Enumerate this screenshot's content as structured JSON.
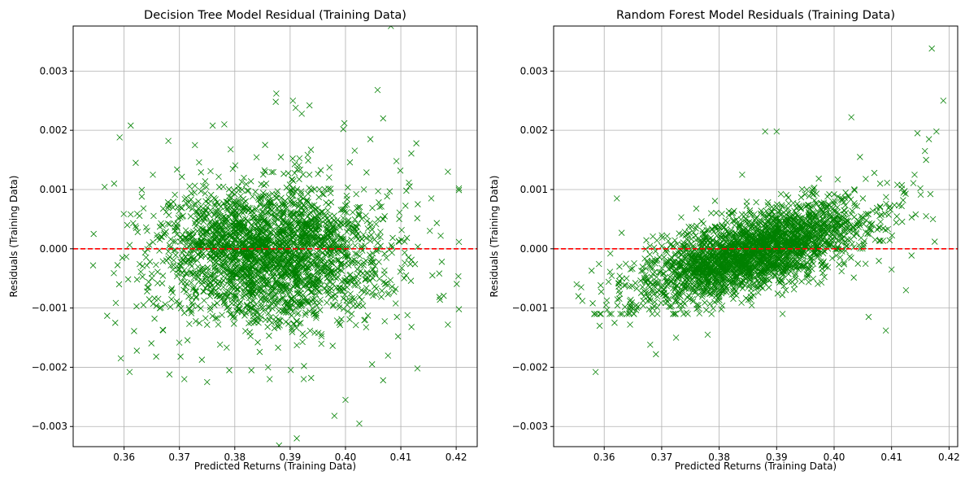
{
  "colors": {
    "marker": "#008000",
    "zero_line": "#ff0000",
    "grid": "#b0b0b0",
    "axes": "#000000"
  },
  "chart_data": [
    {
      "type": "scatter",
      "title": "Decision Tree Model Residual (Training Data)",
      "xlabel": "Predicted Returns (Training Data)",
      "ylabel": "Residuals (Training Data)",
      "xlim": [
        0.3508,
        0.4238
      ],
      "ylim": [
        -0.00334,
        0.00376
      ],
      "xticks": [
        0.36,
        0.37,
        0.38,
        0.39,
        0.4,
        0.41,
        0.42
      ],
      "xtick_labels": [
        "0.36",
        "0.37",
        "0.38",
        "0.39",
        "0.40",
        "0.41",
        "0.42"
      ],
      "yticks": [
        -0.003,
        -0.002,
        -0.001,
        0.0,
        0.001,
        0.002,
        0.003
      ],
      "ytick_labels": [
        "−0.003",
        "−0.002",
        "−0.001",
        "0.000",
        "0.001",
        "0.002",
        "0.003"
      ],
      "grid": true,
      "marker": "x",
      "reference_line": {
        "y": 0.0,
        "style": "dashed"
      },
      "series": [
        {
          "points": [
            [
              0.3545,
              0.00025
            ],
            [
              0.3544,
              -0.00028
            ],
            [
              0.3582,
              0.0011
            ],
            [
              0.3584,
              -0.00125
            ],
            [
              0.3592,
              0.00188
            ],
            [
              0.3594,
              -0.00185
            ],
            [
              0.3612,
              0.00208
            ],
            [
              0.361,
              -0.00208
            ],
            [
              0.3621,
              0.00145
            ],
            [
              0.3623,
              -0.00172
            ],
            [
              0.3658,
              -0.00182
            ],
            [
              0.368,
              0.00182
            ],
            [
              0.3682,
              -0.00212
            ],
            [
              0.3702,
              -0.00182
            ],
            [
              0.3728,
              0.00175
            ],
            [
              0.375,
              -0.00225
            ],
            [
              0.376,
              0.00208
            ],
            [
              0.3781,
              0.0021
            ],
            [
              0.379,
              -0.00205
            ],
            [
              0.383,
              -0.00205
            ],
            [
              0.3863,
              -0.0022
            ],
            [
              0.3875,
              0.00262
            ],
            [
              0.3874,
              0.00248
            ],
            [
              0.388,
              -0.00332
            ],
            [
              0.3905,
              0.0025
            ],
            [
              0.391,
              0.00238
            ],
            [
              0.3921,
              0.00228
            ],
            [
              0.3925,
              -0.00198
            ],
            [
              0.3935,
              0.00242
            ],
            [
              0.3912,
              -0.0032
            ],
            [
              0.3938,
              -0.00218
            ],
            [
              0.398,
              -0.00282
            ],
            [
              0.3998,
              0.00212
            ],
            [
              0.3996,
              0.00202
            ],
            [
              0.4,
              -0.00255
            ],
            [
              0.4025,
              -0.00295
            ],
            [
              0.4058,
              0.00268
            ],
            [
              0.4068,
              0.0022
            ],
            [
              0.4082,
              0.00376
            ],
            [
              0.4068,
              -0.00222
            ],
            [
              0.4128,
              0.00178
            ],
            [
              0.413,
              -0.00202
            ],
            [
              0.4185,
              0.0013
            ],
            [
              0.4185,
              -0.00128
            ],
            [
              0.4205,
              0.00102
            ],
            [
              0.4205,
              -0.00102
            ],
            [
              0.4155,
              0.00085
            ],
            [
              0.4157,
              -0.00045
            ],
            [
              0.4172,
              0.00022
            ],
            [
              0.4174,
              -0.00022
            ],
            [
              0.411,
              0.00098
            ],
            [
              0.4112,
              -0.00112
            ],
            [
              0.4092,
              0.00148
            ],
            [
              0.4095,
              -0.00148
            ],
            [
              0.4045,
              0.00185
            ],
            [
              0.4048,
              -0.00195
            ],
            [
              0.3652,
              0.00125
            ],
            [
              0.3655,
              -0.00118
            ],
            [
              0.3632,
              0.00088
            ],
            [
              0.3635,
              -0.00095
            ]
          ],
          "cloud": {
            "x_mean": 0.3865,
            "x_sd": 0.0105,
            "x_range": [
              0.355,
              0.4205
            ],
            "y_mean": -8e-05,
            "y_sd": 0.00058,
            "y_range": [
              -0.0022,
              0.0022
            ],
            "n": 2600
          }
        }
      ]
    },
    {
      "type": "scatter",
      "title": "Random Forest Model Residuals (Training Data)",
      "xlabel": "Predicted Returns (Training Data)",
      "ylabel": "Residuals (Training Data)",
      "xlim": [
        0.3512,
        0.4215
      ],
      "ylim": [
        -0.00334,
        0.00376
      ],
      "xticks": [
        0.36,
        0.37,
        0.38,
        0.39,
        0.4,
        0.41,
        0.42
      ],
      "xtick_labels": [
        "0.36",
        "0.37",
        "0.38",
        "0.39",
        "0.40",
        "0.41",
        "0.42"
      ],
      "yticks": [
        -0.003,
        -0.002,
        -0.001,
        0.0,
        0.001,
        0.002,
        0.003
      ],
      "ytick_labels": [
        "−0.003",
        "−0.002",
        "−0.001",
        "0.000",
        "0.001",
        "0.002",
        "0.003"
      ],
      "grid": true,
      "marker": "x",
      "reference_line": {
        "y": 0.0,
        "style": "dashed"
      },
      "series": [
        {
          "points": [
            [
              0.3552,
              -0.0006
            ],
            [
              0.356,
              -0.00065
            ],
            [
              0.3562,
              -0.00088
            ],
            [
              0.358,
              -0.00092
            ],
            [
              0.3585,
              -0.00208
            ],
            [
              0.3592,
              -0.0013
            ],
            [
              0.3622,
              0.00085
            ],
            [
              0.3618,
              -0.00125
            ],
            [
              0.3645,
              -0.00128
            ],
            [
              0.368,
              -0.00162
            ],
            [
              0.369,
              -0.00178
            ],
            [
              0.3725,
              -0.0015
            ],
            [
              0.378,
              -0.00145
            ],
            [
              0.384,
              0.00125
            ],
            [
              0.388,
              0.00198
            ],
            [
              0.39,
              0.00198
            ],
            [
              0.403,
              0.00222
            ],
            [
              0.4045,
              0.00155
            ],
            [
              0.406,
              -0.00115
            ],
            [
              0.409,
              -0.00138
            ],
            [
              0.4125,
              -0.0007
            ],
            [
              0.4145,
              0.00195
            ],
            [
              0.4158,
              0.00165
            ],
            [
              0.4165,
              0.00185
            ],
            [
              0.417,
              0.00338
            ],
            [
              0.4178,
              0.00198
            ],
            [
              0.419,
              0.0025
            ],
            [
              0.4175,
              0.00012
            ],
            [
              0.415,
              0.00102
            ],
            [
              0.416,
              0.00055
            ],
            [
              0.414,
              0.00125
            ],
            [
              0.412,
              0.00082
            ],
            [
              0.41,
              -0.00035
            ],
            [
              0.411,
              0.00108
            ],
            [
              0.416,
              0.0015
            ],
            [
              0.4172,
              0.0005
            ],
            [
              0.408,
              0.0011
            ],
            [
              0.407,
              0.00128
            ],
            [
              0.4055,
              0.00118
            ],
            [
              0.4,
              0.00092
            ]
          ],
          "cloud": {
            "x_mean": 0.386,
            "x_sd": 0.0098,
            "x_range": [
              0.3555,
              0.4185
            ],
            "y_mean": -6e-05,
            "y_sd": 0.00032,
            "y_range": [
              -0.0011,
              0.0014
            ],
            "y_slope": 0.028,
            "n": 2600
          }
        }
      ]
    }
  ]
}
